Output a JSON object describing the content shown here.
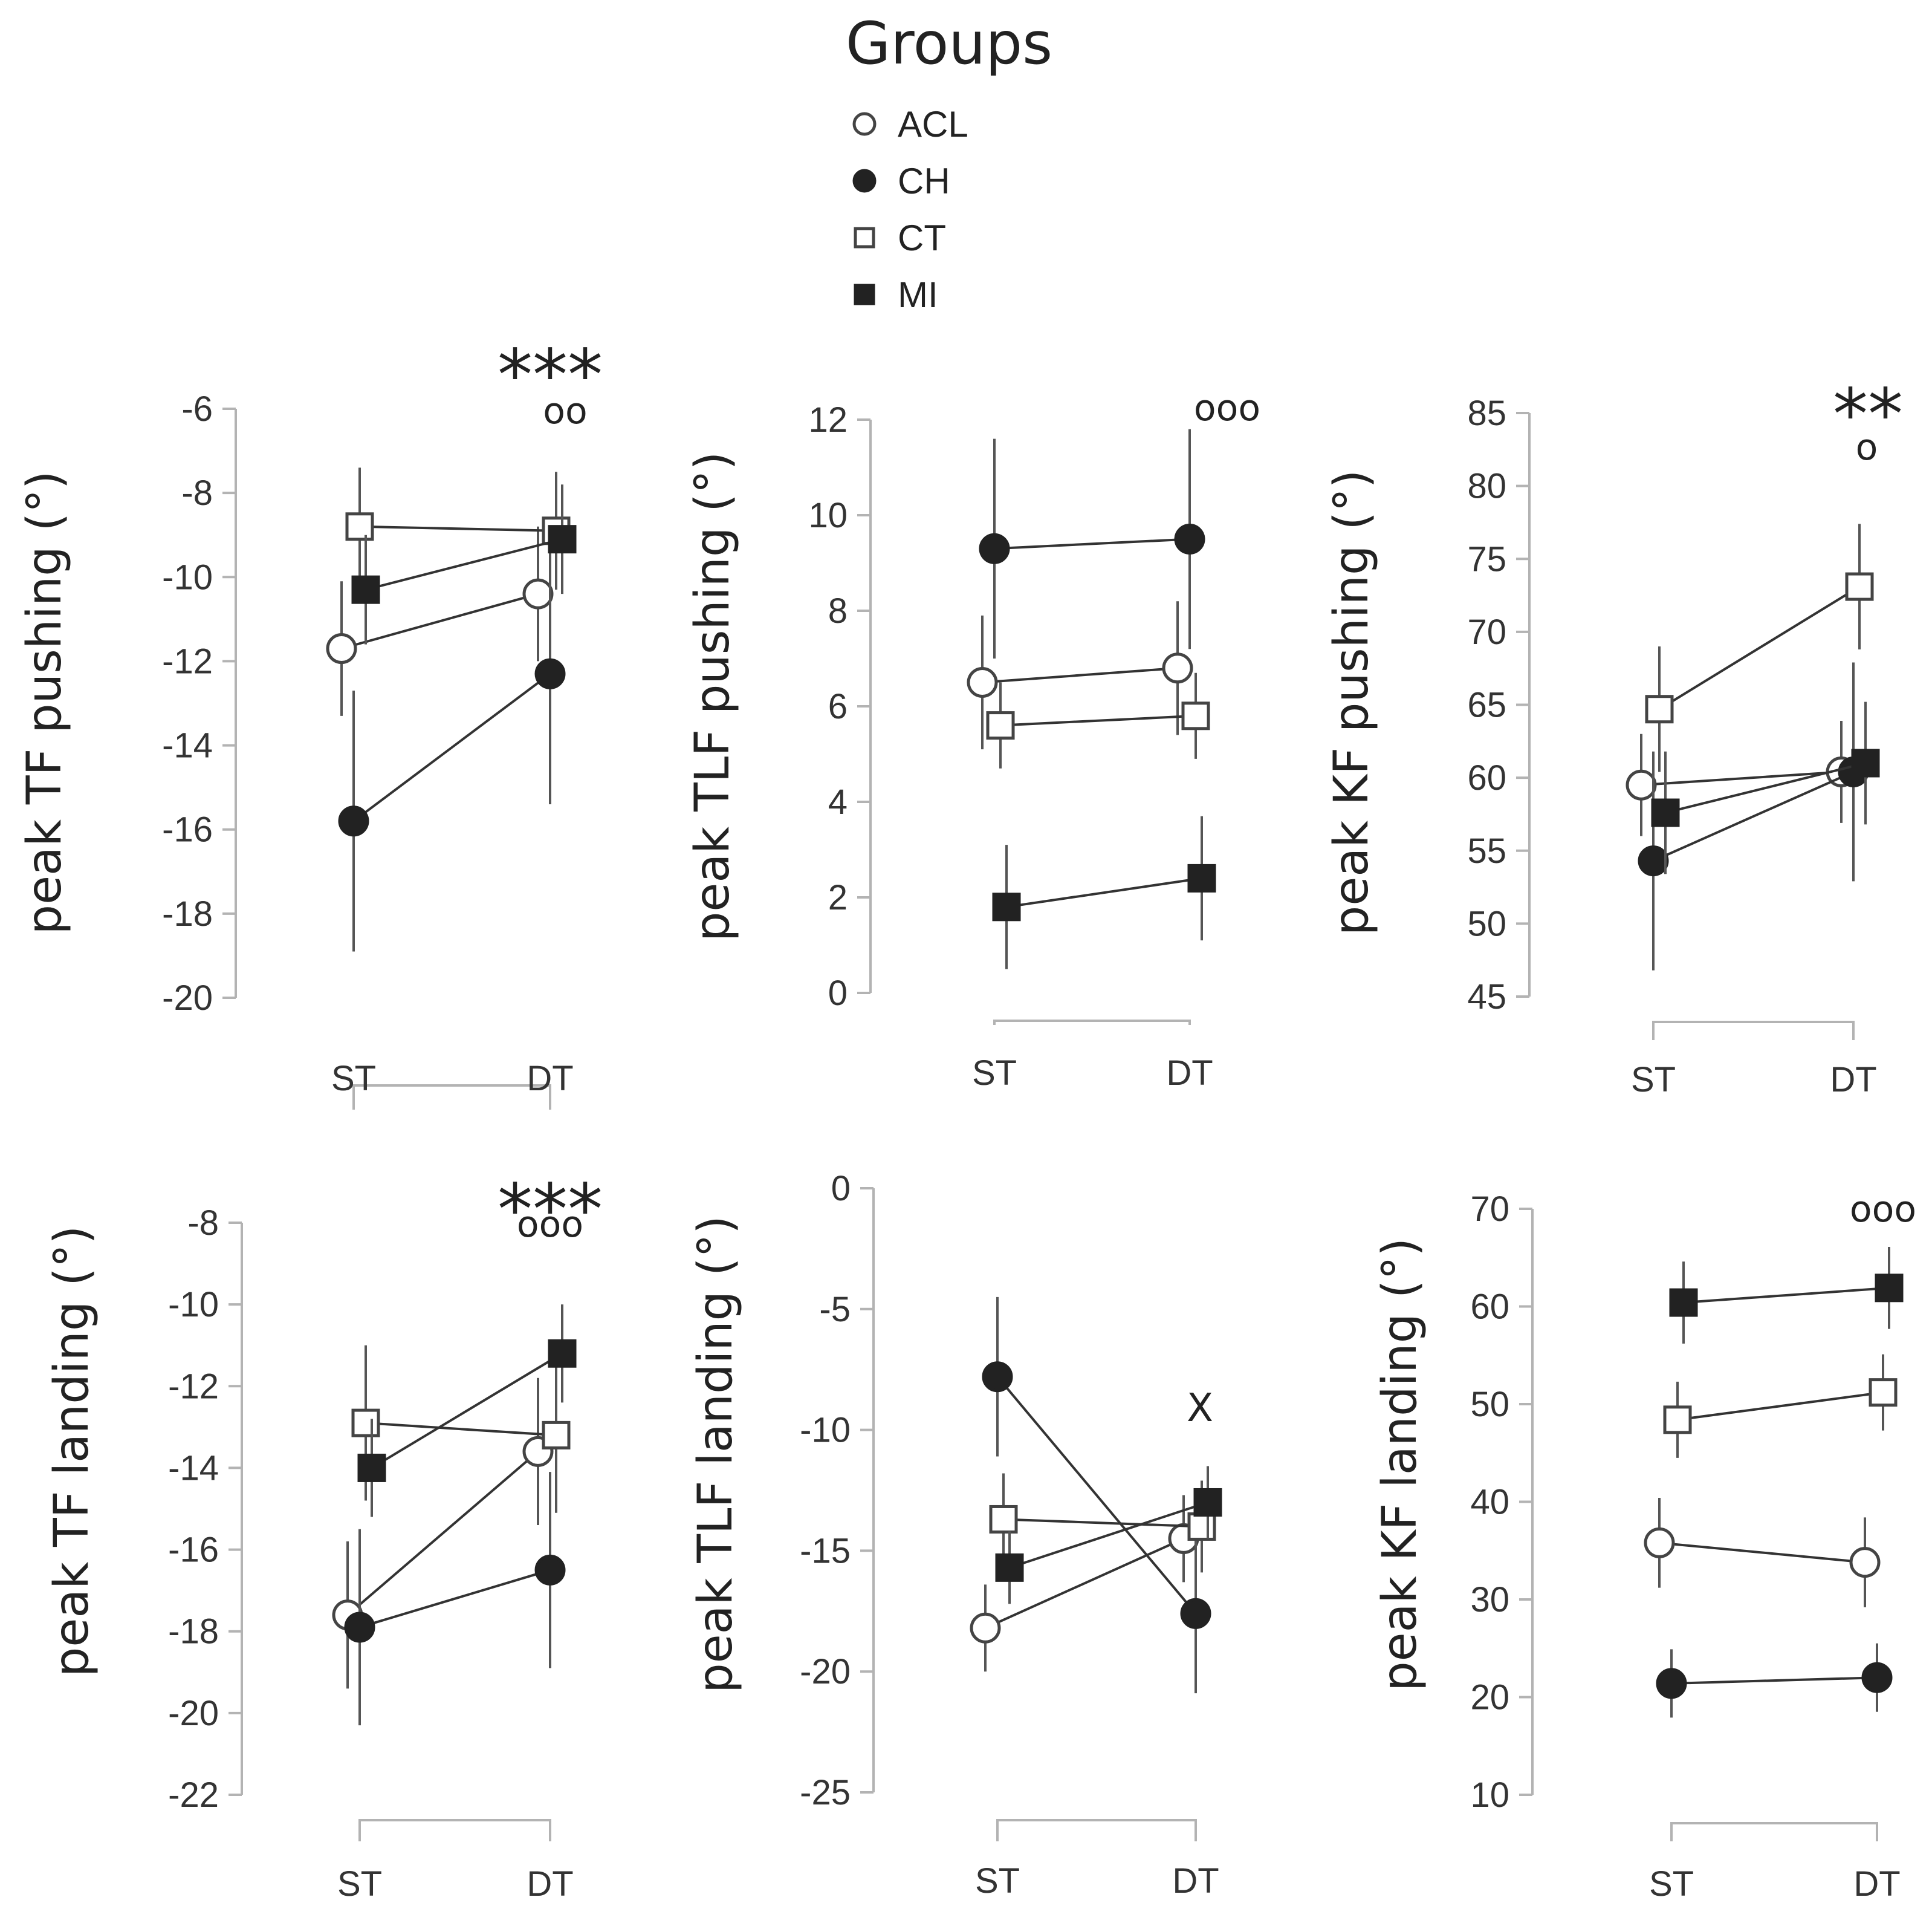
{
  "legend": {
    "title": "Groups",
    "entries": [
      {
        "name": "ACL",
        "marker": "circle",
        "filled": false
      },
      {
        "name": "CH",
        "marker": "circle",
        "filled": true
      },
      {
        "name": "CT",
        "marker": "square",
        "filled": false
      },
      {
        "name": "MI",
        "marker": "square",
        "filled": true
      }
    ]
  },
  "colors": {
    "ink": "#222222",
    "axis": "#b3b3b3",
    "open_fill": "#ffffff"
  },
  "chart_data": [
    {
      "type": "line",
      "ylabel": "peak TF pushing (°)",
      "categories": [
        "ST",
        "DT"
      ],
      "ylim": [
        -20,
        -6
      ],
      "yticks": [
        -6,
        -8,
        -10,
        -12,
        -14,
        -16,
        -18,
        -20
      ],
      "annotations": [
        "***",
        "oo"
      ],
      "series": [
        {
          "name": "ACL",
          "values": [
            -11.7,
            -10.4
          ],
          "errors": [
            1.6,
            1.6
          ]
        },
        {
          "name": "CH",
          "values": [
            -15.8,
            -12.3
          ],
          "errors": [
            3.1,
            3.1
          ]
        },
        {
          "name": "CT",
          "values": [
            -8.8,
            -8.9
          ],
          "errors": [
            1.4,
            1.4
          ]
        },
        {
          "name": "MI",
          "values": [
            -10.3,
            -9.1
          ],
          "errors": [
            1.3,
            1.3
          ]
        }
      ]
    },
    {
      "type": "line",
      "ylabel": "peak TLF pushing (°)",
      "categories": [
        "ST",
        "DT"
      ],
      "ylim": [
        0,
        12
      ],
      "yticks": [
        12,
        10,
        8,
        6,
        4,
        2,
        0
      ],
      "annotations": [
        "ooo"
      ],
      "series": [
        {
          "name": "ACL",
          "values": [
            6.5,
            6.8
          ],
          "errors": [
            1.4,
            1.4
          ]
        },
        {
          "name": "CH",
          "values": [
            9.3,
            9.5
          ],
          "errors": [
            2.3,
            2.3
          ]
        },
        {
          "name": "CT",
          "values": [
            5.6,
            5.8
          ],
          "errors": [
            0.9,
            0.9
          ]
        },
        {
          "name": "MI",
          "values": [
            1.8,
            2.4
          ],
          "errors": [
            1.3,
            1.3
          ]
        }
      ]
    },
    {
      "type": "line",
      "ylabel": "peak KF pushing (°)",
      "categories": [
        "ST",
        "DT"
      ],
      "ylim": [
        45,
        85
      ],
      "yticks": [
        85,
        80,
        75,
        70,
        65,
        60,
        55,
        50,
        45
      ],
      "annotations": [
        "**",
        "o"
      ],
      "series": [
        {
          "name": "ACL",
          "values": [
            59.5,
            60.4
          ],
          "errors": [
            3.5,
            3.5
          ]
        },
        {
          "name": "CH",
          "values": [
            54.3,
            60.4
          ],
          "errors": [
            7.5,
            7.5
          ]
        },
        {
          "name": "CT",
          "values": [
            64.7,
            73.1
          ],
          "errors": [
            4.3,
            4.3
          ]
        },
        {
          "name": "MI",
          "values": [
            57.6,
            61.0
          ],
          "errors": [
            4.2,
            4.2
          ]
        }
      ]
    },
    {
      "type": "line",
      "ylabel": "peak TF landing (°)",
      "categories": [
        "ST",
        "DT"
      ],
      "ylim": [
        -22,
        -8
      ],
      "yticks": [
        -8,
        -10,
        -12,
        -14,
        -16,
        -18,
        -20,
        -22
      ],
      "annotations": [
        "***",
        "ooo"
      ],
      "series": [
        {
          "name": "ACL",
          "values": [
            -17.6,
            -13.6
          ],
          "errors": [
            1.8,
            1.8
          ]
        },
        {
          "name": "CH",
          "values": [
            -17.9,
            -16.5
          ],
          "errors": [
            2.4,
            2.4
          ]
        },
        {
          "name": "CT",
          "values": [
            -12.9,
            -13.2
          ],
          "errors": [
            1.9,
            1.9
          ]
        },
        {
          "name": "MI",
          "values": [
            -14.0,
            -11.2
          ],
          "errors": [
            1.2,
            1.2
          ]
        }
      ]
    },
    {
      "type": "line",
      "ylabel": "peak TLF landing (°)",
      "categories": [
        "ST",
        "DT"
      ],
      "ylim": [
        -25,
        0
      ],
      "yticks": [
        0,
        -5,
        -10,
        -15,
        -20,
        -25
      ],
      "annotations": [
        "X"
      ],
      "series": [
        {
          "name": "ACL",
          "values": [
            -18.2,
            -14.5
          ],
          "errors": [
            1.8,
            1.8
          ]
        },
        {
          "name": "CH",
          "values": [
            -7.8,
            -17.6
          ],
          "errors": [
            3.3,
            3.3
          ]
        },
        {
          "name": "CT",
          "values": [
            -13.7,
            -14.0
          ],
          "errors": [
            1.9,
            1.9
          ]
        },
        {
          "name": "MI",
          "values": [
            -15.7,
            -13.0
          ],
          "errors": [
            1.5,
            1.5
          ]
        }
      ]
    },
    {
      "type": "line",
      "ylabel": "peak KF landing (°)",
      "categories": [
        "ST",
        "DT"
      ],
      "ylim": [
        10,
        70
      ],
      "yticks": [
        70,
        60,
        50,
        40,
        30,
        20,
        10
      ],
      "annotations": [
        "ooo"
      ],
      "series": [
        {
          "name": "ACL",
          "values": [
            35.8,
            33.8
          ],
          "errors": [
            4.6,
            4.6
          ]
        },
        {
          "name": "CH",
          "values": [
            21.4,
            22.0
          ],
          "errors": [
            3.5,
            3.5
          ]
        },
        {
          "name": "CT",
          "values": [
            48.4,
            51.2
          ],
          "errors": [
            3.9,
            3.9
          ]
        },
        {
          "name": "MI",
          "values": [
            60.4,
            61.9
          ],
          "errors": [
            4.2,
            4.2
          ]
        }
      ]
    }
  ]
}
